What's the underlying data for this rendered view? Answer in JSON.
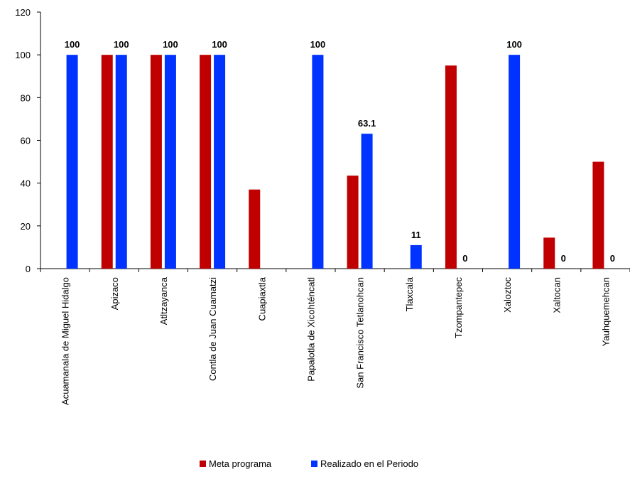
{
  "chart_data": {
    "type": "bar",
    "categories": [
      "Acuamanala de Miguel Hidalgo",
      "Apizaco",
      "Atltzayanca",
      "Contla de Juan Cuamatzi",
      "Cuapiaxtla",
      "Papalotla de Xicohténcatl",
      "San Francisco Tetlanohcan",
      "Tlaxcala",
      "Tzompantepec",
      "Xaloztoc",
      "Xaltocan",
      "Yauhquemehcan"
    ],
    "series": [
      {
        "name": "Meta programa",
        "color": "#C00000",
        "values": [
          null,
          100,
          100,
          100,
          37,
          null,
          43.5,
          null,
          95,
          null,
          14.5,
          50
        ]
      },
      {
        "name": "Realizado en el Periodo",
        "color": "#0033FF",
        "values": [
          100,
          100,
          100,
          100,
          null,
          100,
          63.1,
          11,
          0,
          100,
          0,
          0
        ]
      }
    ],
    "data_labels": [
      "100",
      "100",
      "100",
      "100",
      "",
      "100",
      "63.1",
      "11",
      "0",
      "100",
      "0",
      "0"
    ],
    "y_ticks": [
      "0",
      "20",
      "40",
      "60",
      "80",
      "100",
      "120"
    ],
    "ylim": [
      0,
      120
    ],
    "grid": false,
    "legend_position": "bottom-center"
  }
}
